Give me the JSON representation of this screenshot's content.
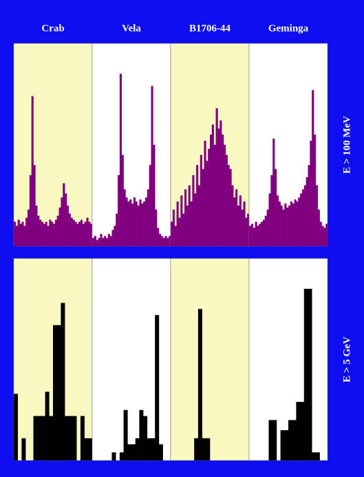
{
  "column_titles": [
    "Crab",
    "Vela",
    "B1706-44",
    "Geminga"
  ],
  "row_labels": [
    "E > 100 MeV",
    "E > 5 GeV"
  ],
  "chart_data": [
    {
      "type": "bar",
      "color": "#800080",
      "background": "#f8f8c0",
      "ylim": [
        0,
        100
      ],
      "values": [
        12,
        10,
        13,
        11,
        12,
        10,
        14,
        18,
        35,
        74,
        40,
        20,
        15,
        13,
        12,
        11,
        12,
        10,
        13,
        12,
        11,
        13,
        15,
        19,
        24,
        31,
        26,
        20,
        16,
        14,
        13,
        12,
        11,
        12,
        13,
        11,
        12,
        14,
        12,
        11
      ]
    },
    {
      "type": "bar",
      "color": "#800080",
      "background": "#ffffff",
      "ylim": [
        0,
        100
      ],
      "values": [
        4,
        5,
        3,
        4,
        6,
        4,
        5,
        4,
        6,
        5,
        8,
        10,
        16,
        35,
        85,
        45,
        28,
        24,
        22,
        23,
        21,
        24,
        22,
        20,
        23,
        21,
        22,
        24,
        28,
        40,
        79,
        50,
        18,
        9,
        6,
        5,
        4,
        5,
        4,
        5
      ]
    },
    {
      "type": "bar",
      "color": "#800080",
      "background": "#f8f8c0",
      "ylim": [
        0,
        100
      ],
      "values": [
        12,
        18,
        10,
        22,
        14,
        25,
        16,
        28,
        20,
        30,
        22,
        35,
        26,
        40,
        30,
        45,
        38,
        52,
        42,
        48,
        55,
        60,
        50,
        68,
        58,
        62,
        55,
        50,
        45,
        40,
        38,
        30,
        24,
        28,
        20,
        25,
        18,
        22,
        14,
        16
      ]
    },
    {
      "type": "bar",
      "color": "#800080",
      "background": "#ffffff",
      "ylim": [
        0,
        100
      ],
      "values": [
        10,
        11,
        9,
        12,
        10,
        11,
        12,
        13,
        15,
        18,
        26,
        35,
        53,
        38,
        25,
        22,
        20,
        18,
        21,
        19,
        20,
        22,
        21,
        23,
        22,
        24,
        26,
        28,
        30,
        34,
        40,
        52,
        77,
        55,
        30,
        18,
        12,
        10,
        9,
        11
      ]
    },
    {
      "type": "bar",
      "color": "#000000",
      "background": "#f8f8c0",
      "ylim": [
        0,
        100
      ],
      "values": [
        33,
        0,
        11,
        0,
        0,
        22,
        22,
        22,
        34,
        22,
        67,
        67,
        78,
        22,
        22,
        22,
        0,
        22,
        11,
        11
      ]
    },
    {
      "type": "bar",
      "color": "#000000",
      "background": "#ffffff",
      "ylim": [
        0,
        100
      ],
      "values": [
        0,
        0,
        0,
        0,
        0,
        4,
        0,
        4,
        25,
        8,
        8,
        11,
        25,
        22,
        11,
        11,
        72,
        8,
        0,
        0
      ]
    },
    {
      "type": "bar",
      "color": "#000000",
      "background": "#f8f8c0",
      "ylim": [
        0,
        100
      ],
      "values": [
        0,
        0,
        0,
        0,
        0,
        0,
        11,
        75,
        11,
        11,
        0,
        0,
        0,
        0,
        0,
        0,
        0,
        0,
        0,
        0
      ]
    },
    {
      "type": "bar",
      "color": "#000000",
      "background": "#ffffff",
      "ylim": [
        0,
        100
      ],
      "values": [
        0,
        0,
        0,
        0,
        0,
        20,
        20,
        0,
        15,
        15,
        20,
        20,
        29,
        29,
        85,
        85,
        4,
        4,
        0,
        0
      ]
    }
  ]
}
